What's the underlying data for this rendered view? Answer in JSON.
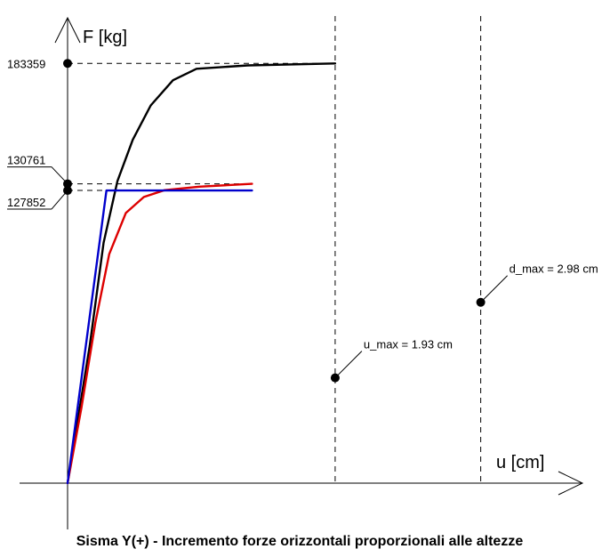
{
  "chart_data": {
    "type": "line",
    "title": "Sisma Y(+) - Incremento forze orizzontali proporzionali alle altezze",
    "xlabel": "u [cm]",
    "ylabel": "F [kg]",
    "xlim": [
      0,
      3.72
    ],
    "ylim": [
      0,
      206000
    ],
    "grid": false,
    "y_ticks": [
      {
        "value": 183359,
        "label": "183359"
      },
      {
        "value": 130761,
        "label": "130761"
      },
      {
        "value": 127852,
        "label": "127852"
      }
    ],
    "series": [
      {
        "color": "#000000",
        "points": [
          [
            0,
            0
          ],
          [
            0.16,
            60000
          ],
          [
            0.26,
            105000
          ],
          [
            0.36,
            132000
          ],
          [
            0.47,
            150000
          ],
          [
            0.6,
            165000
          ],
          [
            0.76,
            176000
          ],
          [
            0.93,
            181000
          ],
          [
            1.3,
            182500
          ],
          [
            1.93,
            183359
          ]
        ]
      },
      {
        "color": "#dd0000",
        "points": [
          [
            0,
            0
          ],
          [
            0.1,
            33000
          ],
          [
            0.2,
            70000
          ],
          [
            0.3,
            100000
          ],
          [
            0.42,
            118000
          ],
          [
            0.55,
            125000
          ],
          [
            0.7,
            128000
          ],
          [
            0.95,
            129500
          ],
          [
            1.33,
            130761
          ]
        ]
      },
      {
        "color": "#0000cc",
        "points": [
          [
            0,
            0
          ],
          [
            0.28,
            127852
          ],
          [
            1.33,
            127852
          ]
        ]
      }
    ],
    "markers": [
      {
        "x": 0,
        "y": 183359,
        "label": ""
      },
      {
        "x": 0,
        "y": 130761,
        "label": ""
      },
      {
        "x": 0,
        "y": 127852,
        "label": ""
      },
      {
        "x": 1.93,
        "y": 46000,
        "label": "u_max = 1.93 cm"
      },
      {
        "x": 2.98,
        "y": 79000,
        "label": "d_max = 2.98 cm"
      }
    ],
    "vertical_guides": [
      1.93,
      2.98
    ],
    "colors": {
      "axis": "#000000",
      "guide": "#000000"
    }
  }
}
